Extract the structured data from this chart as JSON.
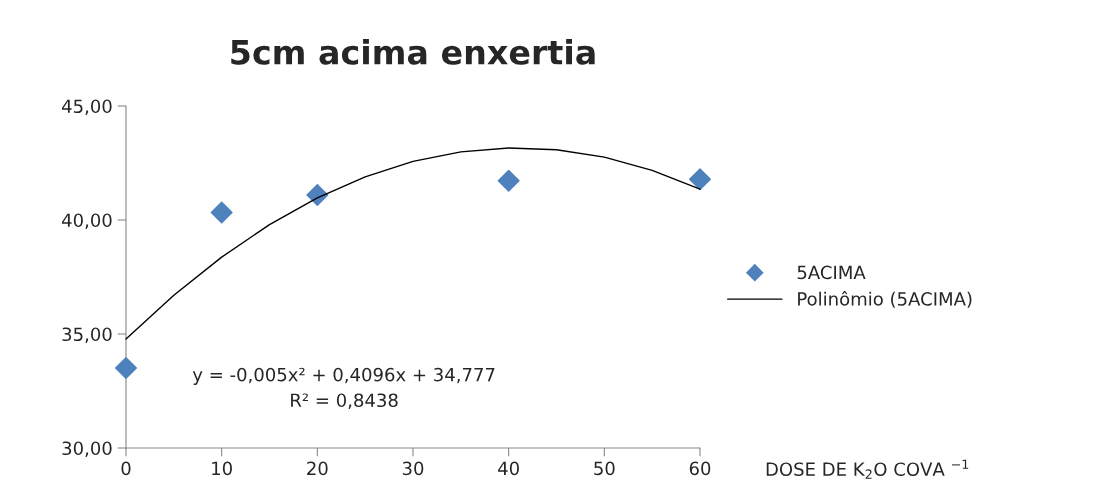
{
  "chart_data": {
    "type": "scatter",
    "title": "5cm acima enxertia",
    "xlabel": "DOSE DE K$_{2}$O COVA $^{−1}$",
    "x": [
      0,
      10,
      20,
      40,
      60
    ],
    "series": [
      {
        "name": "5ACIMA",
        "color": "#4f81bd",
        "marker": "diamond",
        "values": [
          33.51,
          40.33,
          41.1,
          41.72,
          41.79
        ]
      },
      {
        "name": "Polinômio (5ACIMA)",
        "type": "line",
        "color": "#000000",
        "line_style": "solid",
        "x": [
          0,
          5,
          10,
          15,
          20,
          25,
          30,
          35,
          40,
          45,
          50,
          55,
          60
        ],
        "values": [
          34.78,
          36.7,
          38.37,
          39.8,
          40.97,
          41.89,
          42.57,
          42.99,
          43.16,
          43.08,
          42.76,
          42.18,
          41.35
        ]
      }
    ],
    "annotations": [
      "y = -0,005x² + 0,4096x + 34,777",
      "R² = 0,8438"
    ],
    "xlim": [
      0,
      60
    ],
    "xticks": [
      0,
      10,
      20,
      30,
      40,
      50,
      60
    ],
    "ylim": [
      30,
      45
    ],
    "yticks": [
      {
        "value": 30,
        "label": "30,00"
      },
      {
        "value": 35,
        "label": "35,00"
      },
      {
        "value": 40,
        "label": "40,00"
      },
      {
        "value": 45,
        "label": "45,00"
      }
    ],
    "grid": false,
    "legend": "right"
  }
}
